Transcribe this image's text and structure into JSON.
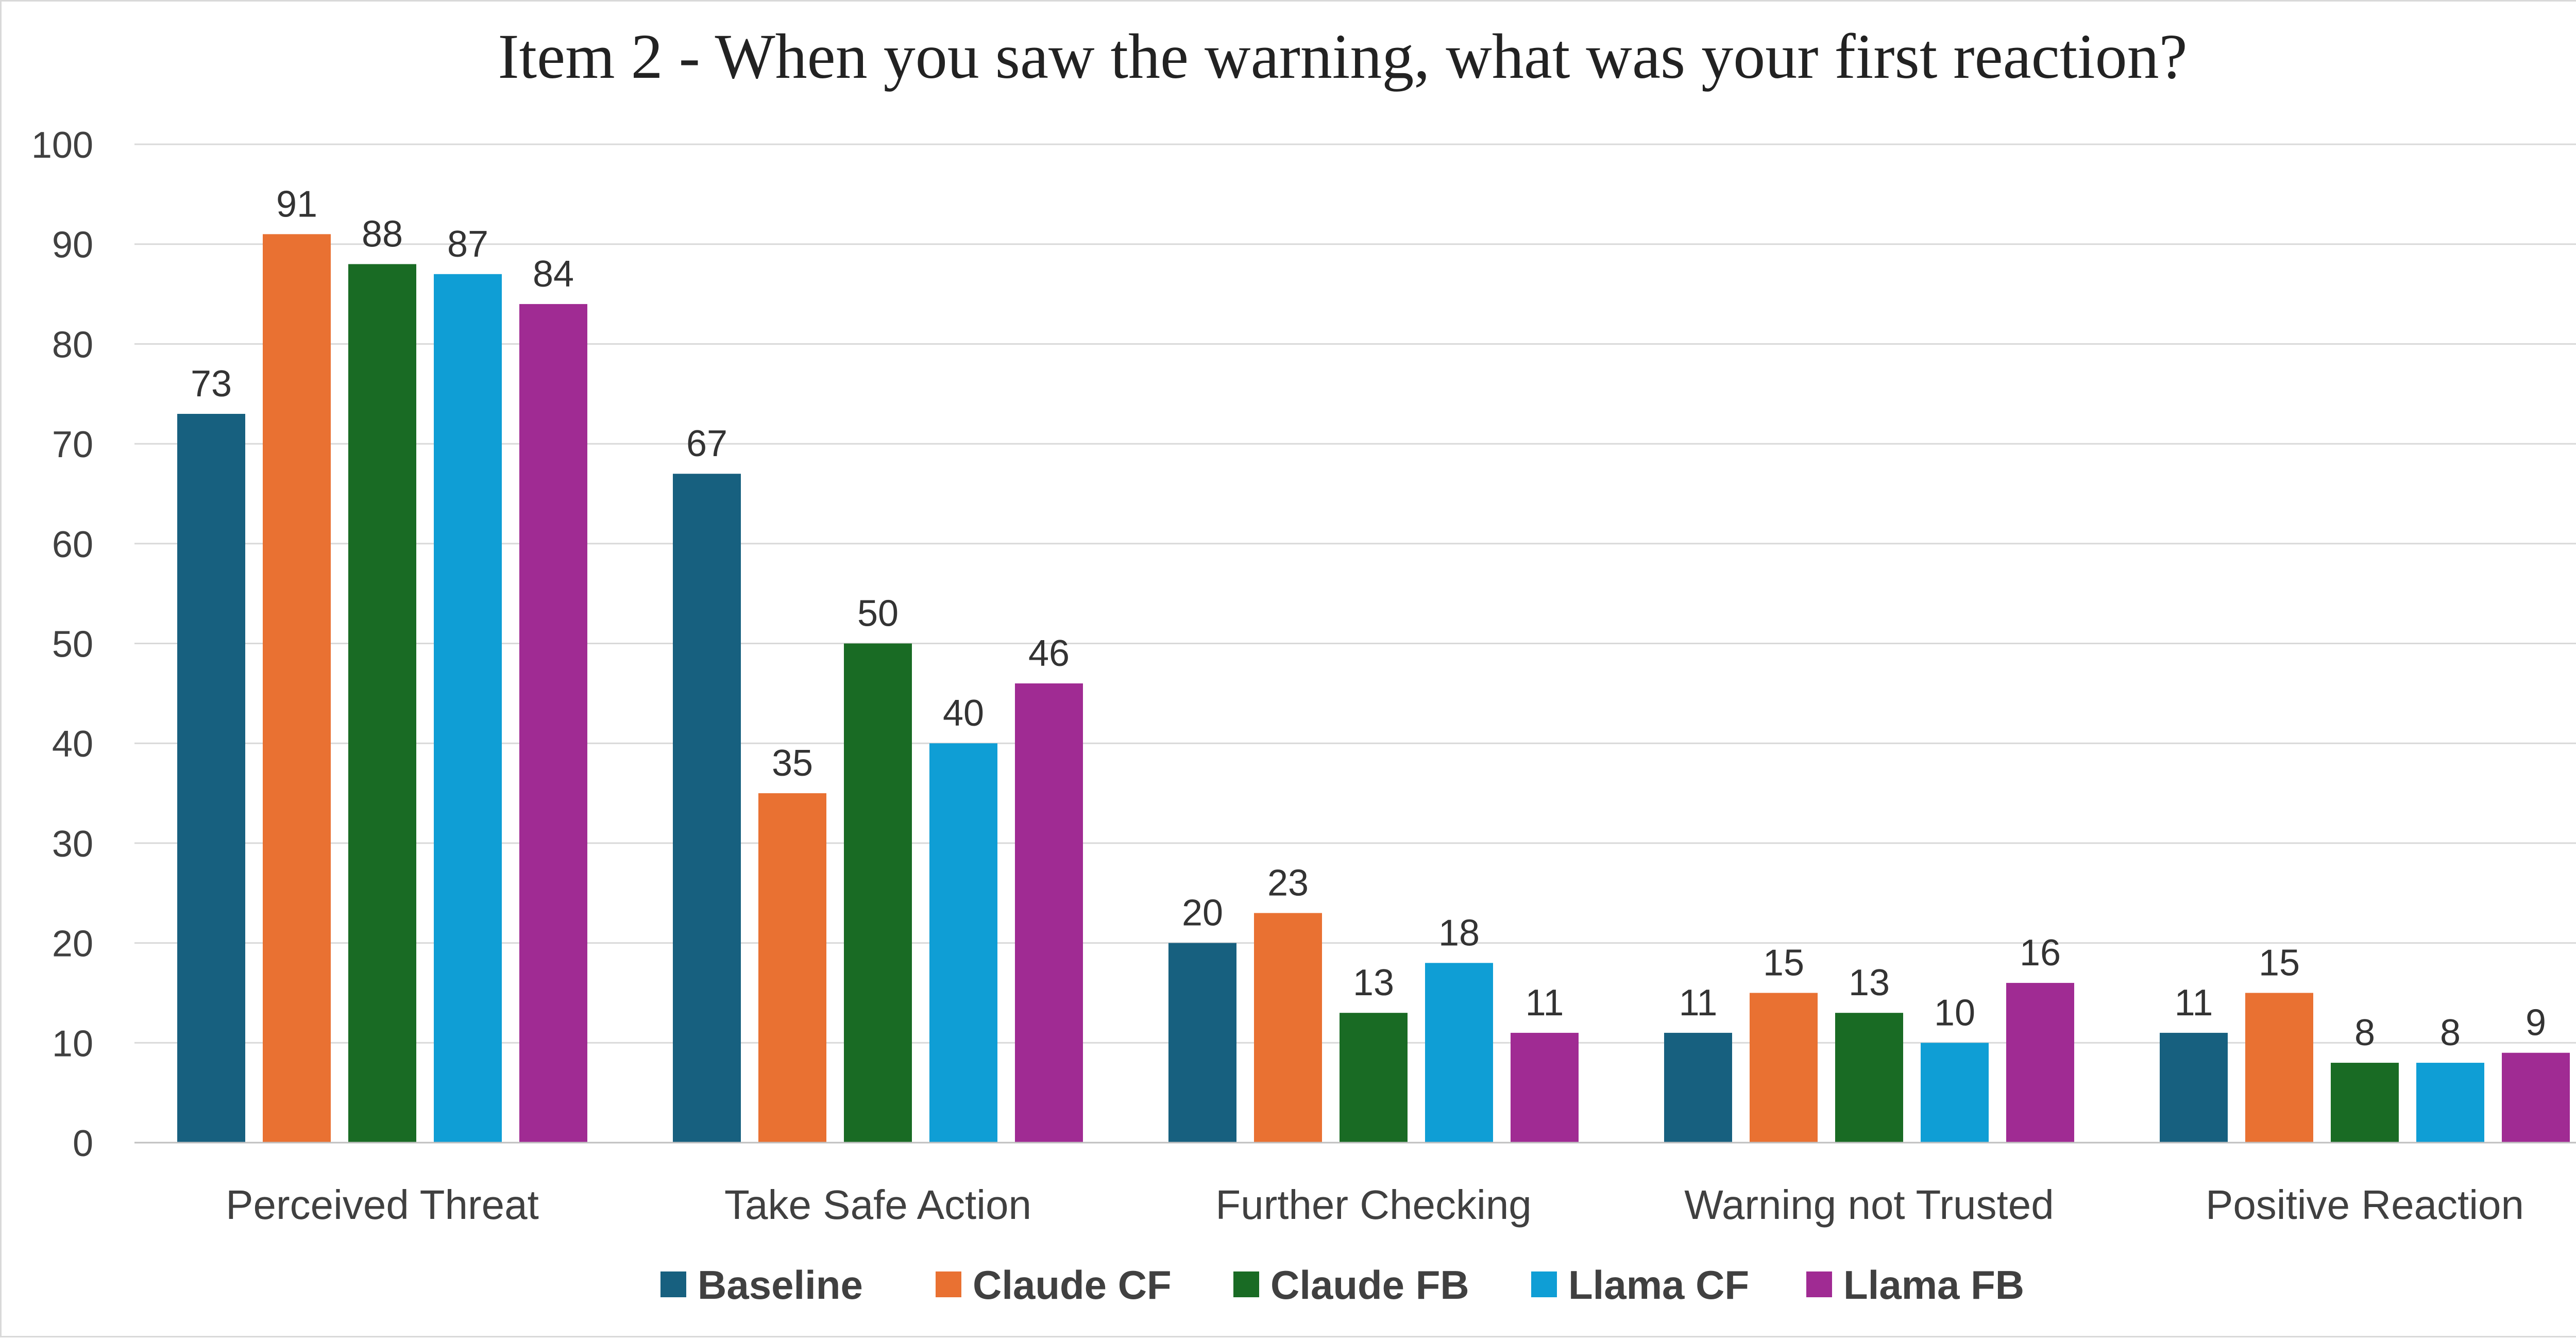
{
  "chart_data": {
    "type": "bar",
    "title": "Item 2 - When you saw the warning, what was your first reaction?",
    "xlabel": "",
    "ylabel": "",
    "ylim": [
      0,
      100
    ],
    "yticks": [
      0,
      10,
      20,
      30,
      40,
      50,
      60,
      70,
      80,
      90,
      100
    ],
    "grid": true,
    "legend_position": "bottom",
    "categories": [
      "Perceived Threat",
      "Take Safe Action",
      "Further Checking",
      "Warning not Trusted",
      "Positive Reaction"
    ],
    "series": [
      {
        "name": "Baseline",
        "color": "#17607f",
        "values": [
          73,
          67,
          20,
          11,
          11
        ]
      },
      {
        "name": "Claude CF",
        "color": "#e97132",
        "values": [
          91,
          35,
          23,
          15,
          15
        ]
      },
      {
        "name": "Claude FB",
        "color": "#196b24",
        "values": [
          88,
          50,
          13,
          13,
          8
        ]
      },
      {
        "name": "Llama CF",
        "color": "#0f9ed5",
        "values": [
          87,
          40,
          18,
          10,
          8
        ]
      },
      {
        "name": "Llama FB",
        "color": "#a02b93",
        "values": [
          84,
          46,
          11,
          16,
          9
        ]
      }
    ]
  }
}
